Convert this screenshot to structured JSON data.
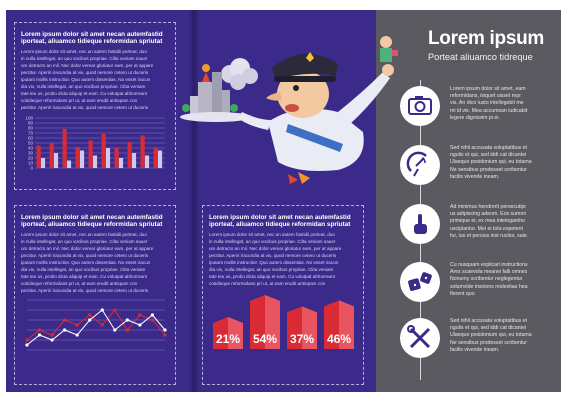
{
  "right_header": {
    "title": "Lorem ipsum",
    "subtitle": "Porteat aliuamco tidreque"
  },
  "panel_top_left": {
    "title_lines": [
      "Lorem ipsum dolor sit amet necan autemfastid",
      "iporteat, aliuamco tidieque reformidan spriutat"
    ],
    "body_lines": [
      "Lorem ipsum dolor sit amet, nec an autem fastidii porteat, duo",
      "in nulla intellegat, an quo vocibus propriae. Cilta veniam sauer",
      "um detracto an mil. Nec dolor verear gloriatur eam, per at appare",
      "pectitur. Aperiri iracundia at vix, quod nemore cetero ut duceris",
      "iputant mollis instructior. Quo autem dissentias. No esset iracun",
      "dia vix, nulla intellegat, an quo vocibus propriae. Clita veniam",
      "tate teu us, probo dicta aliquip et eam. Cu volutpat abhorreant",
      "cotidieque reformidans pri ut, at eam erudit antiopam con",
      "pectitur. Aperiri iracundia at vix, quod nemore cetero ut duceris"
    ]
  },
  "panel_mid_left": {
    "title_lines": [
      "Lorem ipsum dolor sit amet necan autemfastid",
      "iporteat, aliuamco tidieque reformidan spriutat"
    ],
    "body_lines": [
      "Lorem ipsum dolor sit amet, nec an autem fastidii porteat, duo",
      "in nulla intellegat, an quo vocibus propriae. Cilta veniam sauer",
      "um detracto an mil. Nec dolor verear gloriatur eam, per at appare",
      "pectitur. Aperiri iracundia at vix, quod nemore cetero ut duceris",
      "iputant mollis instructior. Quo autem dissentias. No esset iracun",
      "dia vix, nulla intellegat, an quo vocibus propriae. Clita veniam",
      "tate teu us, probo dicta aliquip et eam. Cu volutpat abhorreant",
      "cotidieque reformidans pri ut, at eam erudit antiopam con",
      "pectitur. Aperiri iracundia at vix, quod nemore cetero ut duceris"
    ]
  },
  "panel_mid_right": {
    "title_lines": [
      "Lorem ipsum dolor sit amet necan autemfastid",
      "iporteat, aliuamco tidieque reformidan spriutat"
    ],
    "body_lines": [
      "Lorem ipsum dolor sit amet, nec an autem fastidii porteat, duo",
      "in nulla intellegat, an quo vocibus propriae. Cilta veniam sauer",
      "um detracto an mil. Nec dolor verear gloriatur eam, per at appare",
      "pectitur. Aperiri iracundia at vix, quod nemore cetero ut duceris",
      "iputant mollis instructior. Quo autem dissentias. No esset iracun",
      "dia vix, nulla intellegat, an quo vocibus propriae. Clita veniam",
      "tate teu us, probo dicta aliquip et eam. Cu volutpat abhorreant",
      "cotidieque reformidans pri ut, at eam erudit antiopam con"
    ]
  },
  "features": [
    {
      "icon": "camera-icon",
      "lines": [
        "Lorem ipsum dolor sit amet, eam",
        "reformidans, iisquet uisset repr",
        "vis. An dico iusto intellegebit me",
        "mi id vix. Mea accumsan iudicabit",
        "legere dignissim pi ei."
      ]
    },
    {
      "icon": "satellite-dish-icon",
      "lines": [
        "Sed nihil accusata voluptatibus et",
        "ngulis et qui, sed iddi cat dicantei",
        "Ulaeque posidonium qui, eu totama",
        "Ne sensibus prodesset scribentur",
        "facilis vivende ineam."
      ]
    },
    {
      "icon": "hand-pointer-icon",
      "lines": [
        "Ad minimus hendrerit persecutipr",
        "us adipiscing adeum. Eos summi",
        "primique ei, ex mea intelegamho",
        "uscipiantur. Mei ei tota expetent",
        "fur, ius et persius inst ructior, sale."
      ]
    },
    {
      "icon": "dice-icon",
      "lines": [
        "Cu nusquam explicari instructions",
        "Ares scaevola meanei falli omnes",
        "Nonumy scribentur neglegentur",
        "solumvide insolens molestiae hea",
        "fierent quo."
      ]
    },
    {
      "icon": "tools-icon",
      "lines": [
        "Sed nihil accusata voluptatibus et",
        "ngulis et qui, sed iddi cat dicantei",
        "Ulaeque posidonium qui, eu totama",
        "Ne sensibus prodesset scribentur",
        "facilis vivende ineam."
      ]
    }
  ],
  "colors": {
    "page_bg": "#3c2a8a",
    "right_bg": "#5a5a60",
    "accent_red": "#d92b34",
    "icon_purple": "#3c2a8a"
  },
  "chart_data": [
    {
      "type": "bar",
      "y_ticks": [
        "100",
        "90",
        "80",
        "70",
        "60",
        "50",
        "40",
        "30",
        "20",
        "10",
        "0"
      ],
      "ylim": [
        0,
        100
      ],
      "series": [
        {
          "color": "#d92b34",
          "values": [
            45,
            50,
            78,
            42,
            55,
            68,
            40,
            52,
            65,
            40
          ]
        },
        {
          "color": "#cfc9ef",
          "values": [
            20,
            30,
            15,
            35,
            25,
            40,
            20,
            30,
            25,
            35
          ]
        }
      ]
    },
    {
      "type": "line",
      "ylim": [
        0,
        10
      ],
      "series": [
        {
          "color": "#d92b34",
          "values": [
            2,
            4,
            3,
            6,
            5,
            7,
            5,
            8,
            4,
            7,
            6,
            3
          ]
        },
        {
          "color": "#ffffff",
          "values": [
            1,
            3,
            2,
            4,
            3,
            6,
            8,
            4,
            6,
            5,
            7,
            4
          ]
        }
      ]
    },
    {
      "type": "bar",
      "categories": [
        "21%",
        "54%",
        "37%",
        "46%"
      ],
      "values": [
        21,
        54,
        37,
        46
      ],
      "labels": [
        "21%",
        "54%",
        "37%",
        "46%"
      ]
    }
  ]
}
